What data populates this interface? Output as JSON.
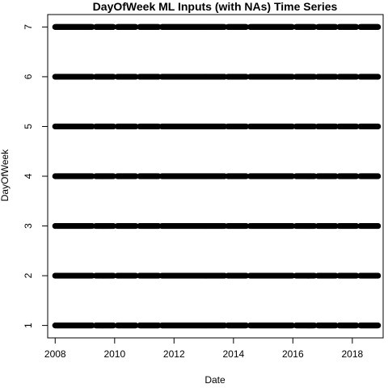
{
  "chart_data": {
    "type": "scatter",
    "title": "DayOfWeek ML Inputs (with NAs) Time Series",
    "xlabel": "Date",
    "ylabel": "DayOfWeek",
    "xlim": [
      "2007-10-01",
      "2019-01-15"
    ],
    "ylim": [
      0.75,
      7.25
    ],
    "x_ticks": [
      "2008",
      "2010",
      "2012",
      "2014",
      "2016",
      "2018"
    ],
    "y_ticks": [
      "1",
      "2",
      "3",
      "4",
      "5",
      "6",
      "7"
    ],
    "x_tick_dates": [
      "2008-01-01",
      "2010-01-01",
      "2012-01-01",
      "2014-01-01",
      "2016-01-01",
      "2018-01-01"
    ],
    "y_tick_values": [
      1,
      2,
      3,
      4,
      5,
      6,
      7
    ],
    "y_values": [
      1,
      2,
      3,
      4,
      5,
      6,
      7
    ],
    "point_color": "#000000",
    "date_segments": [
      [
        "2008-01-01",
        "2009-04-05"
      ],
      [
        "2009-05-15",
        "2009-12-20"
      ],
      [
        "2010-02-05",
        "2010-09-20"
      ],
      [
        "2010-11-05",
        "2011-06-25"
      ],
      [
        "2011-08-05",
        "2013-09-15"
      ],
      [
        "2013-10-25",
        "2014-06-10"
      ],
      [
        "2014-07-25",
        "2015-12-25"
      ],
      [
        "2016-02-10",
        "2016-09-25"
      ],
      [
        "2016-11-05",
        "2017-06-15"
      ],
      [
        "2017-07-25",
        "2018-02-25"
      ],
      [
        "2018-04-10",
        "2018-11-15"
      ]
    ]
  }
}
